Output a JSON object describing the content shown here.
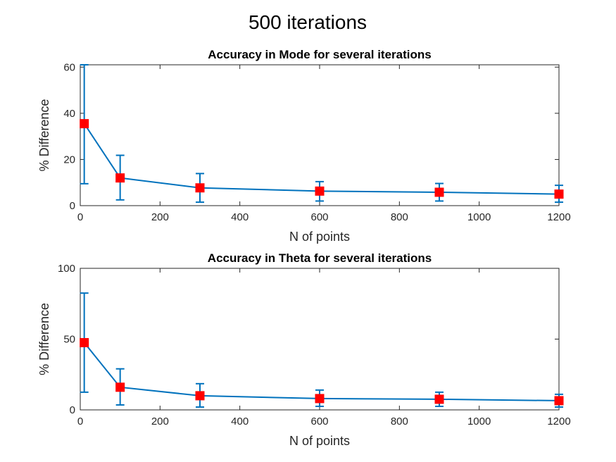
{
  "figure_title": "500 iterations",
  "chart_data": [
    {
      "type": "line",
      "title": "Accuracy in Mode for several iterations",
      "xlabel": "N of points",
      "ylabel": "% Difference",
      "xlim": [
        0,
        1200
      ],
      "ylim": [
        0,
        61
      ],
      "xticks": [
        0,
        200,
        400,
        600,
        800,
        1000,
        1200
      ],
      "yticks": [
        0,
        20,
        40,
        60
      ],
      "grid": false,
      "series": [
        {
          "x": [
            10,
            100,
            300,
            600,
            900,
            1200
          ],
          "y": [
            35.5,
            12,
            7.7,
            6.3,
            5.8,
            5
          ],
          "err_low": [
            9.5,
            2.5,
            1.5,
            2,
            2,
            1.5
          ],
          "err_high": [
            61,
            21.8,
            13.9,
            10.4,
            9.6,
            8.8
          ],
          "line_color": "#0072BD",
          "marker_color": "#FF0000",
          "marker": "square"
        }
      ]
    },
    {
      "type": "line",
      "title": "Accuracy in Theta for several iterations",
      "xlabel": "N of points",
      "ylabel": "% Difference",
      "xlim": [
        0,
        1200
      ],
      "ylim": [
        0,
        100
      ],
      "xticks": [
        0,
        200,
        400,
        600,
        800,
        1000,
        1200
      ],
      "yticks": [
        0,
        50,
        100
      ],
      "grid": false,
      "series": [
        {
          "x": [
            10,
            100,
            300,
            600,
            900,
            1200
          ],
          "y": [
            47.5,
            16,
            10,
            8,
            7.5,
            6.5
          ],
          "err_low": [
            12.5,
            3.5,
            2,
            2.5,
            2.5,
            2
          ],
          "err_high": [
            82.5,
            29,
            18.5,
            14,
            12.5,
            11
          ],
          "line_color": "#0072BD",
          "marker_color": "#FF0000",
          "marker": "square"
        }
      ]
    }
  ]
}
